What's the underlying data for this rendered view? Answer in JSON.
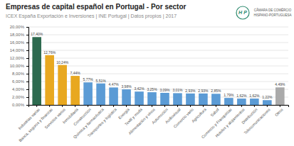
{
  "chart_data": {
    "type": "bar",
    "title": "Empresas de capital español en Portugal - Por sector",
    "subtitle": "ICEX España Exportación e Inversiones | INE Portugal | Datos propios | 2017",
    "annotations": [
      "H",
      "P",
      "CÂMARA DE COMÉRCIO",
      "HISPANO-PORTUGUESA"
    ],
    "categories": [
      "Industrias varias",
      "Banca, seguros y finanzas",
      "Servicios varios",
      "Inmobiliaria",
      "Construcción",
      "Química y farmacéutica",
      "Transportes y logística",
      "Energía",
      "Textil y moda",
      "Alimentación y vinos",
      "Automoción",
      "Audiovisual",
      "Comercio vario",
      "Agricultura",
      "Salud",
      "Comercio y Franquicias",
      "Hoteles y alojamientos",
      "Distribución",
      "Telecomunicaciones",
      "Otros"
    ],
    "values": [
      17.4,
      12.76,
      10.24,
      7.44,
      5.77,
      5.51,
      4.47,
      3.98,
      3.42,
      3.25,
      3.09,
      3.01,
      2.93,
      2.93,
      2.85,
      1.79,
      1.62,
      1.62,
      1.22,
      4.49
    ],
    "value_labels": [
      "17,40%",
      "12,76%",
      "10,24%",
      "7,44%",
      "5,77%",
      "5,51%",
      "4,47%",
      "3,98%",
      "3,42%",
      "3,25%",
      "3,09%",
      "3,01%",
      "2,93%",
      "2,93%",
      "2,85%",
      "1,79%",
      "1,62%",
      "1,62%",
      "1,22%",
      "4,49%"
    ],
    "data_labels": true,
    "colors": [
      "#2d6a4f",
      "#e8a820",
      "#e8a820",
      "#e8a820",
      "#5b9bd5",
      "#5b9bd5",
      "#5b9bd5",
      "#5b9bd5",
      "#5b9bd5",
      "#5b9bd5",
      "#5b9bd5",
      "#5b9bd5",
      "#5b9bd5",
      "#5b9bd5",
      "#5b9bd5",
      "#5b9bd5",
      "#5b9bd5",
      "#5b9bd5",
      "#5b9bd5",
      "#aaaaaa"
    ],
    "ylim": [
      0,
      20.0
    ],
    "yticks": [
      {
        "value": 0,
        "label": "0,00%"
      },
      {
        "value": 2,
        "label": "2,00%"
      },
      {
        "value": 4,
        "label": "4,00%"
      },
      {
        "value": 6,
        "label": "6,00%"
      },
      {
        "value": 8,
        "label": "8,00%"
      },
      {
        "value": 10,
        "label": "10,00%"
      },
      {
        "value": 12,
        "label": "12,00%"
      },
      {
        "value": 14,
        "label": "14,00%"
      },
      {
        "value": 16,
        "label": "16,00%"
      },
      {
        "value": 18,
        "label": "18,00%"
      },
      {
        "value": 20,
        "label": "20,00%"
      }
    ],
    "grid": true
  }
}
